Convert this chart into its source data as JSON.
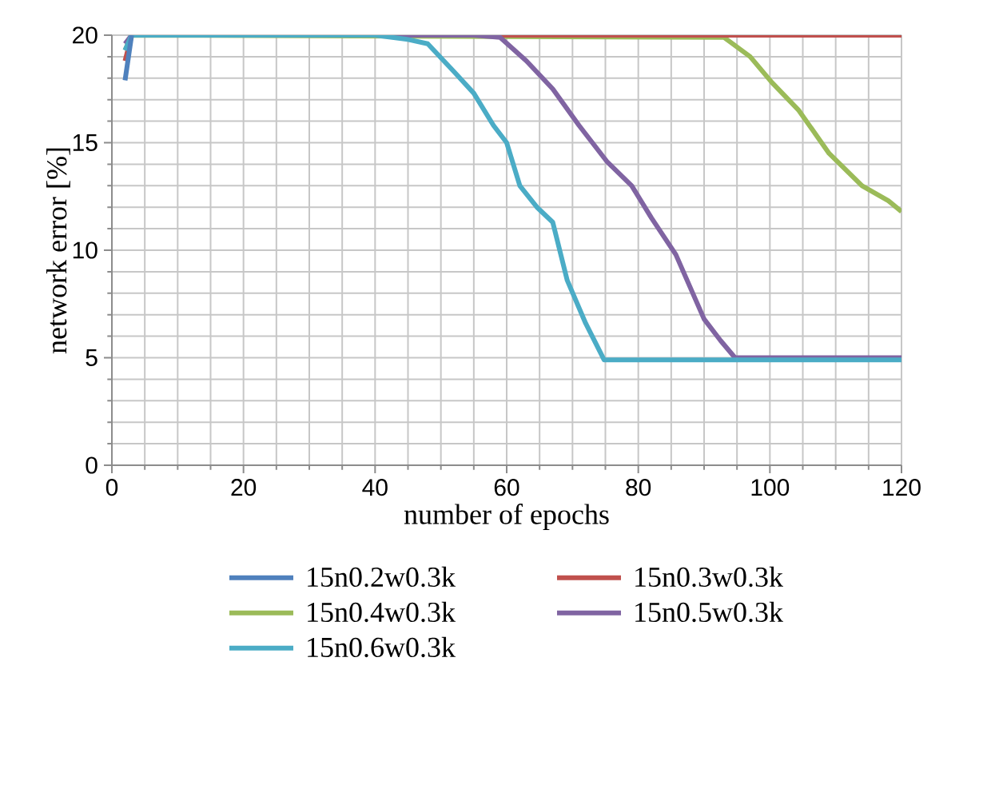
{
  "chart_data": {
    "type": "line",
    "xlabel": "number of epochs",
    "ylabel": "network error [%]",
    "xlim": [
      0,
      120
    ],
    "xticks": [
      0,
      20,
      40,
      60,
      80,
      100,
      120
    ],
    "ylim": [
      0,
      20
    ],
    "yticks": [
      0,
      5,
      10,
      15,
      20
    ],
    "grid": true,
    "legend": "bottom",
    "line_style": "solid",
    "marker": "none",
    "series": [
      {
        "name": "15n0.2w0.3k",
        "color": "#4f81bd",
        "x": [
          2,
          3
        ],
        "values": [
          17.9,
          20
        ]
      },
      {
        "name": "15n0.3w0.3k",
        "color": "#c0504d",
        "x": [
          2,
          3,
          120
        ],
        "values": [
          18.8,
          20,
          20
        ]
      },
      {
        "name": "15n0.4w0.3k",
        "color": "#9bbb59",
        "x": [
          2,
          3,
          93,
          97,
          100.3,
          104.4,
          109,
          114,
          118,
          120
        ],
        "values": [
          19.3,
          20,
          19.9,
          19,
          17.8,
          16.5,
          14.5,
          13,
          12.3,
          11.8
        ]
      },
      {
        "name": "15n0.5w0.3k",
        "color": "#8064a2",
        "x": [
          2,
          3,
          4,
          55,
          59,
          63,
          67,
          71,
          75.3,
          79,
          82,
          85.7,
          90,
          92.5,
          94.7,
          120
        ],
        "values": [
          19.6,
          20,
          20,
          20,
          19.9,
          18.8,
          17.5,
          15.8,
          14.1,
          13,
          11.5,
          9.8,
          6.8,
          5.8,
          5,
          5
        ]
      },
      {
        "name": "15n0.6w0.3k",
        "color": "#4bacc6",
        "x": [
          2,
          3,
          4,
          40,
          45,
          48,
          52,
          55,
          58,
          60,
          62,
          64.6,
          67,
          69.2,
          72,
          74.8,
          120
        ],
        "values": [
          19.3,
          20,
          20,
          20,
          19.8,
          19.6,
          18.3,
          17.3,
          15.8,
          15,
          13,
          12,
          11.3,
          8.6,
          6.6,
          4.9,
          4.9
        ]
      }
    ]
  }
}
